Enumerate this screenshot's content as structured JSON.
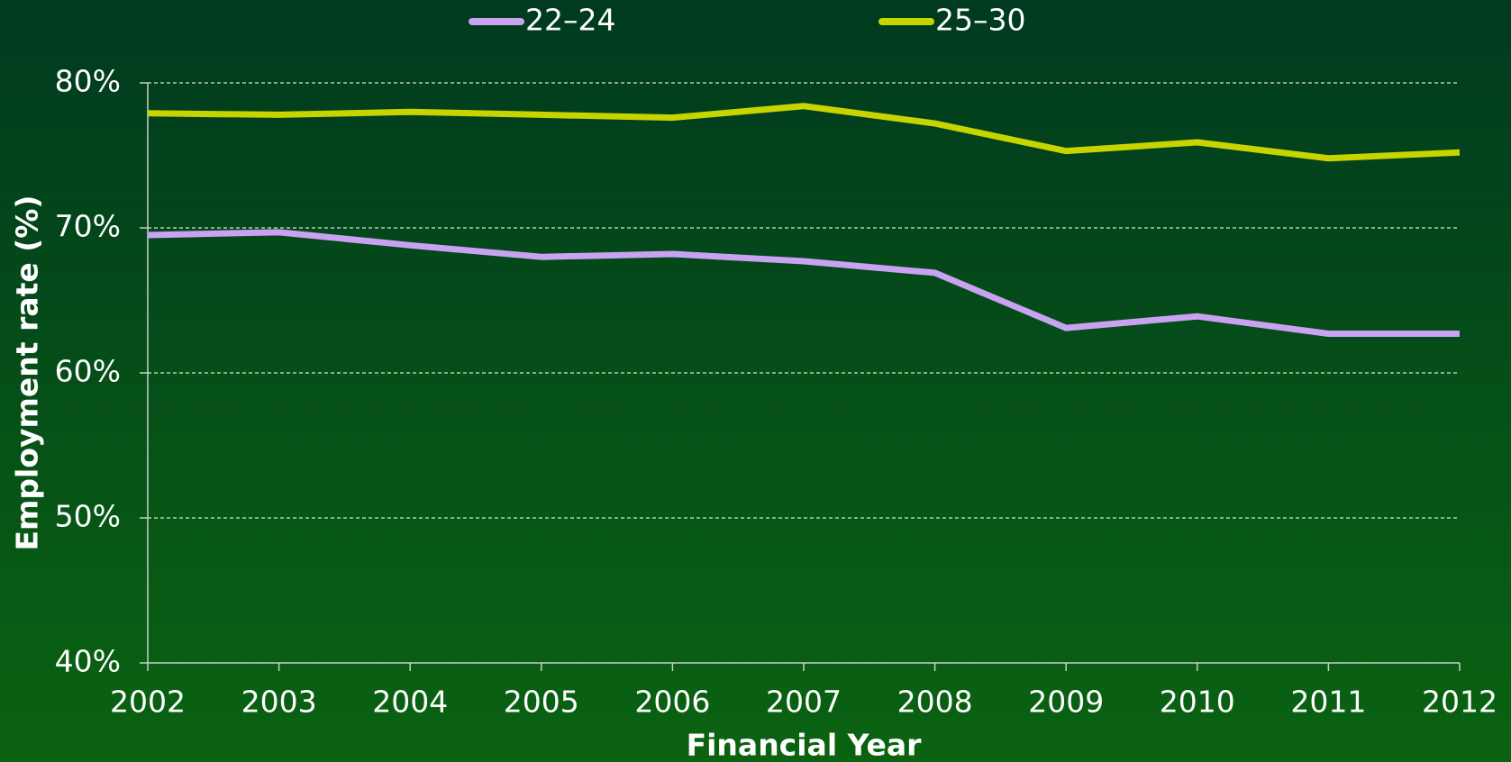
{
  "chart_data": {
    "type": "line",
    "x_label": "Financial Year",
    "y_label": "Employment rate (%)",
    "categories": [
      "2002",
      "2003",
      "2004",
      "2005",
      "2006",
      "2007",
      "2008",
      "2009",
      "2010",
      "2011",
      "2012"
    ],
    "series": [
      {
        "name": "22–24",
        "color": "#c9a3f2",
        "values": [
          69.5,
          69.7,
          68.8,
          68.0,
          68.2,
          67.7,
          66.9,
          63.1,
          63.9,
          62.7,
          62.7
        ]
      },
      {
        "name": "25–30",
        "color": "#c8d400",
        "values": [
          77.9,
          77.8,
          78.0,
          77.8,
          77.6,
          78.4,
          77.2,
          75.3,
          75.9,
          74.8,
          75.2
        ]
      }
    ],
    "ylim": [
      40,
      80
    ],
    "yticks": [
      {
        "value": 40,
        "label": "40%"
      },
      {
        "value": 50,
        "label": "50%"
      },
      {
        "value": 60,
        "label": "60%"
      },
      {
        "value": 70,
        "label": "70%"
      },
      {
        "value": 80,
        "label": "80%"
      }
    ],
    "grid": true,
    "legend": "top"
  }
}
